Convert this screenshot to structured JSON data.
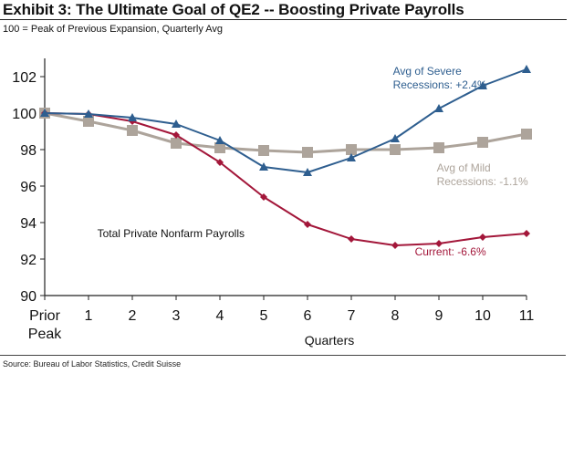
{
  "header": {
    "title": "Exhibit 3: The Ultimate Goal of QE2 -- Boosting Private Payrolls",
    "subtitle": "100 = Peak of Previous Expansion, Quarterly Avg"
  },
  "footer": {
    "source": "Source: Bureau of Labor Statistics, Credit Suisse"
  },
  "chart_data": {
    "type": "line",
    "title": "Exhibit 3: The Ultimate Goal of QE2 -- Boosting Private Payrolls",
    "subtitle": "100 = Peak of Previous Expansion, Quarterly Avg",
    "xlabel": "Quarters",
    "ylabel": "",
    "x": [
      0,
      1,
      2,
      3,
      4,
      5,
      6,
      7,
      8,
      9,
      10,
      11
    ],
    "x_tick_labels": [
      "Prior\nPeak",
      "1",
      "2",
      "3",
      "4",
      "5",
      "6",
      "7",
      "8",
      "9",
      "10",
      "11"
    ],
    "x_tick_label_lines": [
      [
        "Prior",
        "Peak"
      ],
      [
        "1"
      ],
      [
        "2"
      ],
      [
        "3"
      ],
      [
        "4"
      ],
      [
        "5"
      ],
      [
        "6"
      ],
      [
        "7"
      ],
      [
        "8"
      ],
      [
        "9"
      ],
      [
        "10"
      ],
      [
        "11"
      ]
    ],
    "xlim": [
      0,
      11
    ],
    "ylim": [
      90,
      103
    ],
    "y_ticks": [
      90,
      92,
      94,
      96,
      98,
      100,
      102
    ],
    "grid": false,
    "legend": "none",
    "series": [
      {
        "name": "Avg of Mild Recessions",
        "marker": "square",
        "color": "#ADA49B",
        "values": [
          100.0,
          99.55,
          99.05,
          98.35,
          98.1,
          97.95,
          97.85,
          98.0,
          98.0,
          98.1,
          98.4,
          98.85
        ]
      },
      {
        "name": "Current",
        "marker": "diamond",
        "color": "#A3173A",
        "values": [
          100.0,
          99.95,
          99.55,
          98.8,
          97.3,
          95.4,
          93.9,
          93.1,
          92.75,
          92.85,
          93.2,
          93.4
        ]
      },
      {
        "name": "Avg of Severe Recessions",
        "marker": "triangle",
        "color": "#2E5E8F",
        "values": [
          100.0,
          99.95,
          99.75,
          99.4,
          98.5,
          97.05,
          96.75,
          97.55,
          98.6,
          100.25,
          101.5,
          102.4
        ]
      }
    ],
    "annotations": [
      {
        "id": "severe",
        "lines": [
          "Avg of Severe",
          "Recessions: +2.4%"
        ],
        "color": "#2E5E8F",
        "x": 7.95,
        "y": 102.1,
        "anchor": "start"
      },
      {
        "id": "mild",
        "lines": [
          "Avg of Mild",
          "Recessions: -1.1%"
        ],
        "color": "#ADA49B",
        "x": 8.95,
        "y": 96.8,
        "anchor": "start"
      },
      {
        "id": "current",
        "lines": [
          "Current: -6.6%"
        ],
        "color": "#A3173A",
        "x": 8.45,
        "y": 92.2,
        "anchor": "start"
      },
      {
        "id": "series-name",
        "lines": [
          "Total Private Nonfarm Payrolls"
        ],
        "color": "#111111",
        "x": 1.2,
        "y": 93.2,
        "anchor": "start"
      }
    ]
  }
}
